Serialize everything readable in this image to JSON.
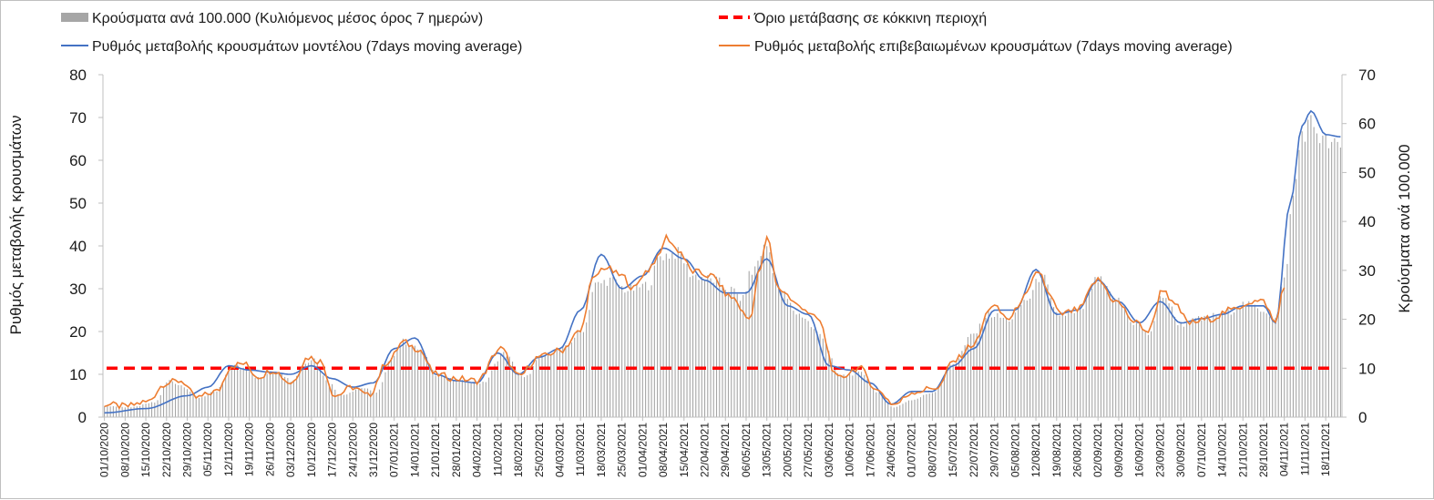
{
  "chart_data": {
    "type": "bar",
    "title": "",
    "ylabel": "Ρυθμός μεταβολής κρουσμάτων",
    "y2label": "Κρούσματα ανά 100.000",
    "ylim": [
      0,
      80
    ],
    "y2lim": [
      0,
      70
    ],
    "yticks": [
      "0",
      "10",
      "20",
      "30",
      "40",
      "50",
      "60",
      "70",
      "80"
    ],
    "y2ticks": [
      "0",
      "10",
      "20",
      "30",
      "40",
      "50",
      "60",
      "70"
    ],
    "x_start": "2020-10-01",
    "x_end": "2021-11-23",
    "xticks": [
      "01/10/2020",
      "08/10/2020",
      "15/10/2020",
      "22/10/2020",
      "29/10/2020",
      "05/11/2020",
      "12/11/2020",
      "19/11/2020",
      "26/11/2020",
      "03/12/2020",
      "10/12/2020",
      "17/12/2020",
      "24/12/2020",
      "31/12/2020",
      "07/01/2021",
      "14/01/2021",
      "21/01/2021",
      "28/01/2021",
      "04/02/2021",
      "11/02/2021",
      "18/02/2021",
      "25/02/2021",
      "04/03/2021",
      "11/03/2021",
      "18/03/2021",
      "25/03/2021",
      "01/04/2021",
      "08/04/2021",
      "15/04/2021",
      "22/04/2021",
      "29/04/2021",
      "06/05/2021",
      "13/05/2021",
      "20/05/2021",
      "27/05/2021",
      "03/06/2021",
      "10/06/2021",
      "17/06/2021",
      "24/06/2021",
      "01/07/2021",
      "08/07/2021",
      "15/07/2021",
      "22/07/2021",
      "29/07/2021",
      "05/08/2021",
      "12/08/2021",
      "19/08/2021",
      "26/08/2021",
      "02/09/2021",
      "09/09/2021",
      "16/09/2021",
      "23/09/2021",
      "30/09/2021",
      "07/10/2021",
      "14/10/2021",
      "21/10/2021",
      "28/10/2021",
      "04/11/2021",
      "11/11/2021",
      "18/11/2021"
    ],
    "legend": [
      {
        "label": "Κρούσματα ανά 100.000 (Κυλιόμενος μέσος όρος 7 ημερών)",
        "kind": "bar",
        "color": "#a6a6a6",
        "position": "top-left"
      },
      {
        "label": "Όριο μετάβασης σε κόκκινη περιοχή",
        "kind": "dashed-line",
        "color": "#ff0000",
        "position": "top-right"
      },
      {
        "label": "Ρυθμός μεταβολής κρουσμάτων μοντέλου (7days moving average)",
        "kind": "line",
        "color": "#4472c4",
        "position": "second-row-left"
      },
      {
        "label": "Ρυθμός μεταβολής επιβεβαιωμένων κρουσμάτων (7days moving average)",
        "kind": "line",
        "color": "#ed7d31",
        "position": "second-row-right"
      }
    ],
    "series": [
      {
        "name": "Κρούσματα ανά 100.000 (Κυλιόμενος μέσος όρος 7 ημερών)",
        "type": "bar",
        "axis": "right",
        "color": "#a6a6a6",
        "keypoints": [
          [
            "2020-10-01",
            2.3
          ],
          [
            "2020-10-10",
            2
          ],
          [
            "2020-10-18",
            3
          ],
          [
            "2020-10-23",
            7.5
          ],
          [
            "2020-10-27",
            6.5
          ],
          [
            "2020-11-02",
            4
          ],
          [
            "2020-11-07",
            5
          ],
          [
            "2020-11-14",
            10.5
          ],
          [
            "2020-11-18",
            10
          ],
          [
            "2020-11-22",
            8
          ],
          [
            "2020-11-29",
            9.5
          ],
          [
            "2020-12-03",
            7.5
          ],
          [
            "2020-12-08",
            11
          ],
          [
            "2020-12-11",
            12
          ],
          [
            "2020-12-16",
            7
          ],
          [
            "2020-12-20",
            4.5
          ],
          [
            "2020-12-27",
            6
          ],
          [
            "2021-01-01",
            5
          ],
          [
            "2021-01-07",
            13
          ],
          [
            "2021-01-10",
            15.5
          ],
          [
            "2021-01-15",
            14
          ],
          [
            "2021-01-22",
            8.5
          ],
          [
            "2021-01-28",
            7.5
          ],
          [
            "2021-02-06",
            7
          ],
          [
            "2021-02-13",
            13
          ],
          [
            "2021-02-20",
            8
          ],
          [
            "2021-02-26",
            12.5
          ],
          [
            "2021-03-05",
            14
          ],
          [
            "2021-03-12",
            18
          ],
          [
            "2021-03-16",
            27
          ],
          [
            "2021-03-21",
            28
          ],
          [
            "2021-03-27",
            26
          ],
          [
            "2021-04-03",
            27
          ],
          [
            "2021-04-07",
            33
          ],
          [
            "2021-04-13",
            33.5
          ],
          [
            "2021-04-18",
            29
          ],
          [
            "2021-04-25",
            28
          ],
          [
            "2021-05-01",
            26
          ],
          [
            "2021-05-05",
            24
          ],
          [
            "2021-05-07",
            29
          ],
          [
            "2021-05-13",
            35
          ],
          [
            "2021-05-17",
            26
          ],
          [
            "2021-05-24",
            21
          ],
          [
            "2021-05-31",
            17
          ],
          [
            "2021-06-07",
            8.5
          ],
          [
            "2021-06-14",
            9
          ],
          [
            "2021-06-20",
            5
          ],
          [
            "2021-06-25",
            2
          ],
          [
            "2021-07-01",
            3.5
          ],
          [
            "2021-07-08",
            5
          ],
          [
            "2021-07-15",
            11
          ],
          [
            "2021-07-22",
            17
          ],
          [
            "2021-07-27",
            21
          ],
          [
            "2021-08-03",
            20
          ],
          [
            "2021-08-09",
            24
          ],
          [
            "2021-08-14",
            29
          ],
          [
            "2021-08-19",
            21
          ],
          [
            "2021-08-26",
            21
          ],
          [
            "2021-09-02",
            28
          ],
          [
            "2021-09-08",
            24
          ],
          [
            "2021-09-15",
            19
          ],
          [
            "2021-09-19",
            17
          ],
          [
            "2021-09-24",
            25
          ],
          [
            "2021-09-30",
            19
          ],
          [
            "2021-10-07",
            20
          ],
          [
            "2021-10-14",
            21
          ],
          [
            "2021-10-21",
            23
          ],
          [
            "2021-10-28",
            22
          ],
          [
            "2021-11-01",
            20
          ],
          [
            "2021-11-04",
            28
          ],
          [
            "2021-11-07",
            45
          ],
          [
            "2021-11-10",
            58
          ],
          [
            "2021-11-13",
            60
          ],
          [
            "2021-11-18",
            56
          ],
          [
            "2021-11-23",
            55
          ]
        ]
      },
      {
        "name": "Ρυθμός μεταβολής κρουσμάτων μοντέλου (7days moving average)",
        "type": "line",
        "axis": "left",
        "color": "#4472c4",
        "keypoints": [
          [
            "2020-10-01",
            1
          ],
          [
            "2020-10-15",
            2
          ],
          [
            "2020-10-29",
            5
          ],
          [
            "2020-11-05",
            7
          ],
          [
            "2020-11-12",
            12
          ],
          [
            "2020-11-19",
            11
          ],
          [
            "2020-11-26",
            10.5
          ],
          [
            "2020-12-03",
            10
          ],
          [
            "2020-12-10",
            12
          ],
          [
            "2020-12-17",
            9
          ],
          [
            "2020-12-24",
            7
          ],
          [
            "2020-12-31",
            8
          ],
          [
            "2021-01-07",
            16
          ],
          [
            "2021-01-14",
            18.5
          ],
          [
            "2021-01-21",
            10
          ],
          [
            "2021-01-28",
            8.5
          ],
          [
            "2021-02-04",
            8
          ],
          [
            "2021-02-11",
            15
          ],
          [
            "2021-02-18",
            10
          ],
          [
            "2021-02-25",
            14
          ],
          [
            "2021-03-04",
            16
          ],
          [
            "2021-03-11",
            25
          ],
          [
            "2021-03-18",
            38
          ],
          [
            "2021-03-25",
            30
          ],
          [
            "2021-04-01",
            33
          ],
          [
            "2021-04-08",
            39.5
          ],
          [
            "2021-04-15",
            37
          ],
          [
            "2021-04-22",
            32
          ],
          [
            "2021-04-29",
            29
          ],
          [
            "2021-05-06",
            29
          ],
          [
            "2021-05-13",
            37
          ],
          [
            "2021-05-20",
            26
          ],
          [
            "2021-05-27",
            24
          ],
          [
            "2021-06-03",
            12
          ],
          [
            "2021-06-10",
            11
          ],
          [
            "2021-06-17",
            8
          ],
          [
            "2021-06-24",
            3
          ],
          [
            "2021-07-01",
            6
          ],
          [
            "2021-07-08",
            6
          ],
          [
            "2021-07-15",
            12
          ],
          [
            "2021-07-22",
            16
          ],
          [
            "2021-07-29",
            25
          ],
          [
            "2021-08-05",
            25
          ],
          [
            "2021-08-12",
            34.5
          ],
          [
            "2021-08-19",
            24
          ],
          [
            "2021-08-26",
            25
          ],
          [
            "2021-09-02",
            32
          ],
          [
            "2021-09-09",
            27
          ],
          [
            "2021-09-16",
            22
          ],
          [
            "2021-09-23",
            27
          ],
          [
            "2021-09-30",
            22
          ],
          [
            "2021-10-07",
            23
          ],
          [
            "2021-10-14",
            24
          ],
          [
            "2021-10-21",
            26
          ],
          [
            "2021-10-28",
            26
          ],
          [
            "2021-11-01",
            22
          ],
          [
            "2021-11-06",
            50
          ],
          [
            "2021-11-10",
            68
          ],
          [
            "2021-11-13",
            71.5
          ],
          [
            "2021-11-18",
            66
          ],
          [
            "2021-11-23",
            65.5
          ]
        ]
      },
      {
        "name": "Ρυθμός μεταβολής επιβεβαιωμένων κρουσμάτων (7days moving average)",
        "type": "line",
        "axis": "left",
        "color": "#ed7d31",
        "keypoints": [
          [
            "2020-10-01",
            3
          ],
          [
            "2020-10-08",
            2.5
          ],
          [
            "2020-10-15",
            3.5
          ],
          [
            "2020-10-22",
            8
          ],
          [
            "2020-10-27",
            8.5
          ],
          [
            "2020-11-01",
            4.5
          ],
          [
            "2020-11-08",
            6
          ],
          [
            "2020-11-13",
            12
          ],
          [
            "2020-11-17",
            12.5
          ],
          [
            "2020-11-22",
            9.5
          ],
          [
            "2020-11-27",
            11
          ],
          [
            "2020-12-03",
            8
          ],
          [
            "2020-12-09",
            14
          ],
          [
            "2020-12-13",
            13
          ],
          [
            "2020-12-18",
            5
          ],
          [
            "2020-12-24",
            7
          ],
          [
            "2020-12-29",
            5
          ],
          [
            "2021-01-05",
            13
          ],
          [
            "2021-01-10",
            17.5
          ],
          [
            "2021-01-15",
            16
          ],
          [
            "2021-01-21",
            10
          ],
          [
            "2021-01-28",
            9
          ],
          [
            "2021-02-04",
            8.5
          ],
          [
            "2021-02-12",
            16
          ],
          [
            "2021-02-18",
            9.5
          ],
          [
            "2021-02-25",
            14
          ],
          [
            "2021-03-04",
            15.5
          ],
          [
            "2021-03-11",
            20
          ],
          [
            "2021-03-15",
            32
          ],
          [
            "2021-03-19",
            35
          ],
          [
            "2021-03-25",
            33
          ],
          [
            "2021-03-29",
            30
          ],
          [
            "2021-04-02",
            34
          ],
          [
            "2021-04-06",
            37
          ],
          [
            "2021-04-09",
            42
          ],
          [
            "2021-04-13",
            39
          ],
          [
            "2021-04-18",
            34
          ],
          [
            "2021-04-24",
            33
          ],
          [
            "2021-05-01",
            28
          ],
          [
            "2021-05-07",
            23
          ],
          [
            "2021-05-11",
            35
          ],
          [
            "2021-05-13",
            42
          ],
          [
            "2021-05-17",
            30
          ],
          [
            "2021-05-24",
            26
          ],
          [
            "2021-05-30",
            23
          ],
          [
            "2021-06-06",
            9
          ],
          [
            "2021-06-13",
            11.5
          ],
          [
            "2021-06-20",
            6
          ],
          [
            "2021-06-25",
            3
          ],
          [
            "2021-07-02",
            6
          ],
          [
            "2021-07-10",
            7
          ],
          [
            "2021-07-15",
            13
          ],
          [
            "2021-07-22",
            17
          ],
          [
            "2021-07-28",
            26
          ],
          [
            "2021-08-03",
            23
          ],
          [
            "2021-08-08",
            28
          ],
          [
            "2021-08-13",
            34
          ],
          [
            "2021-08-17",
            28
          ],
          [
            "2021-08-20",
            24
          ],
          [
            "2021-08-26",
            25
          ],
          [
            "2021-09-02",
            32
          ],
          [
            "2021-09-08",
            27
          ],
          [
            "2021-09-15",
            22
          ],
          [
            "2021-09-19",
            20
          ],
          [
            "2021-09-24",
            30
          ],
          [
            "2021-09-28",
            26
          ],
          [
            "2021-10-03",
            22
          ],
          [
            "2021-10-10",
            23
          ],
          [
            "2021-10-17",
            25
          ],
          [
            "2021-10-24",
            27
          ],
          [
            "2021-10-28",
            27
          ],
          [
            "2021-11-01",
            22
          ],
          [
            "2021-11-04",
            31
          ]
        ]
      },
      {
        "name": "Όριο μετάβασης σε κόκκινη περιοχή",
        "type": "dashed-line",
        "axis": "right",
        "color": "#ff0000",
        "value": 10
      }
    ]
  }
}
